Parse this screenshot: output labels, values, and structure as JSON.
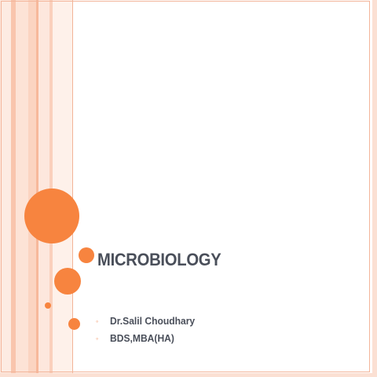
{
  "slide": {
    "title": "MICROBIOLOGY",
    "bullets": [
      {
        "marker": "◦",
        "text": "Dr.Salil Choudhary"
      },
      {
        "marker": "◦",
        "text": "BDS,MBA(HA)"
      }
    ]
  },
  "theme": {
    "accent": "#f7843f",
    "text": "#4a4f5a",
    "stripe_light": "#fde6da",
    "stripe_mid": "#f9c8b1",
    "frame": "#f3b59a"
  }
}
